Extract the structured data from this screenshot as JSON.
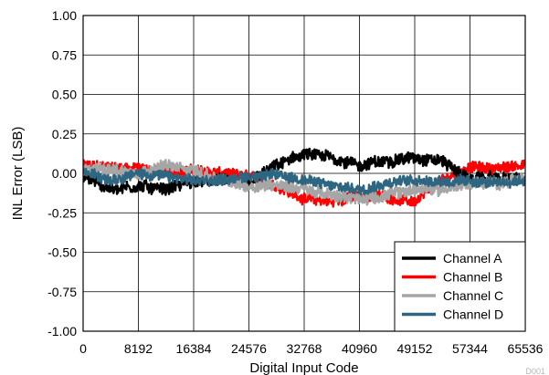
{
  "chart_data": {
    "type": "line",
    "title": "",
    "xlabel": "Digital Input Code",
    "ylabel": "INL Error (LSB)",
    "xlim": [
      0,
      65536
    ],
    "ylim": [
      -1.0,
      1.0
    ],
    "x_ticks": [
      "0",
      "8192",
      "16384",
      "24576",
      "32768",
      "40960",
      "49152",
      "57344",
      "65536"
    ],
    "y_ticks": [
      "1.00",
      "0.75",
      "0.50",
      "0.25",
      "0.00",
      "-0.25",
      "-0.50",
      "-0.75",
      "-1.00"
    ],
    "grid": true,
    "legend_position": "bottom-right",
    "series": [
      {
        "name": "Channel A",
        "color": "#000000",
        "x": [
          0,
          4096,
          8192,
          12288,
          16384,
          20480,
          24576,
          28672,
          32768,
          36864,
          40960,
          45056,
          49152,
          53248,
          57344,
          61440,
          65536
        ],
        "y": [
          -0.02,
          -0.1,
          -0.08,
          -0.1,
          -0.05,
          -0.04,
          -0.06,
          0.05,
          0.12,
          0.1,
          0.05,
          0.08,
          0.1,
          0.08,
          -0.04,
          -0.03,
          -0.04
        ],
        "noise": 0.045
      },
      {
        "name": "Channel B",
        "color": "#ff0000",
        "x": [
          0,
          4096,
          8192,
          12288,
          16384,
          20480,
          24576,
          28672,
          32768,
          36864,
          40960,
          45056,
          49152,
          53248,
          57344,
          61440,
          65536
        ],
        "y": [
          0.05,
          0.04,
          0.03,
          0.01,
          0.02,
          0.0,
          -0.02,
          -0.08,
          -0.16,
          -0.18,
          -0.14,
          -0.15,
          -0.18,
          -0.04,
          0.04,
          0.03,
          0.06
        ],
        "noise": 0.04
      },
      {
        "name": "Channel C",
        "color": "#a6a6a6",
        "x": [
          0,
          4096,
          8192,
          12288,
          16384,
          20480,
          24576,
          28672,
          32768,
          36864,
          40960,
          45056,
          49152,
          53248,
          57344,
          61440,
          65536
        ],
        "y": [
          0.02,
          0.03,
          0.0,
          0.05,
          0.02,
          -0.05,
          -0.08,
          -0.07,
          -0.1,
          -0.14,
          -0.16,
          -0.14,
          -0.1,
          -0.1,
          -0.06,
          -0.06,
          -0.04
        ],
        "noise": 0.045
      },
      {
        "name": "Channel D",
        "color": "#2e6580",
        "x": [
          0,
          4096,
          8192,
          12288,
          16384,
          20480,
          24576,
          28672,
          32768,
          36864,
          40960,
          45056,
          49152,
          53248,
          57344,
          61440,
          65536
        ],
        "y": [
          0.01,
          -0.04,
          0.0,
          -0.02,
          -0.05,
          -0.04,
          -0.02,
          -0.01,
          -0.04,
          -0.08,
          -0.1,
          -0.06,
          -0.04,
          -0.05,
          -0.05,
          -0.06,
          -0.04
        ],
        "noise": 0.04
      }
    ],
    "watermark": "D001"
  }
}
